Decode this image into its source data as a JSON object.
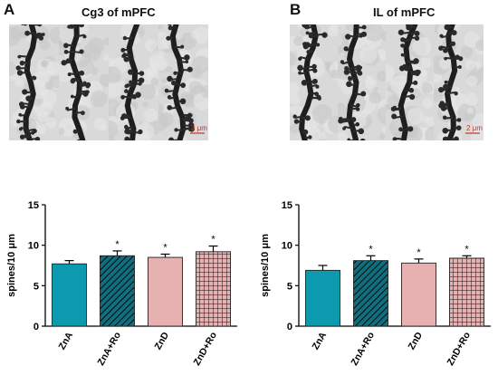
{
  "panels": [
    {
      "letter": "A",
      "title": "Cg3 of mPFC",
      "scale_bar": "2 μm"
    },
    {
      "letter": "B",
      "title": "IL of mPFC",
      "scale_bar": "2 μm"
    }
  ],
  "colors": {
    "ZnA": "#0d9aae",
    "ZnA+Ro": "#0f6f7e",
    "ZnD": "#e8b1b1",
    "ZnD+Ro": "#e8b1b1",
    "axis": "#000000",
    "scale_bar": "#c0392b"
  },
  "chart_data": [
    {
      "type": "bar",
      "panel": "A",
      "categories": [
        "ZnA",
        "ZnA+Ro",
        "ZnD",
        "ZnD+Ro"
      ],
      "values": [
        7.7,
        8.7,
        8.5,
        9.2
      ],
      "errors": [
        0.4,
        0.6,
        0.4,
        0.7
      ],
      "significance": [
        "",
        "*",
        "*",
        "*"
      ],
      "fills": [
        "solid",
        "hatch",
        "solid",
        "grid"
      ],
      "ylabel": "spines/10 μm",
      "yticks": [
        0,
        5,
        10,
        15
      ],
      "ylim": [
        0,
        15
      ]
    },
    {
      "type": "bar",
      "panel": "B",
      "categories": [
        "ZnA",
        "ZnA+Ro",
        "ZnD",
        "ZnD+Ro"
      ],
      "values": [
        6.9,
        8.1,
        7.8,
        8.4
      ],
      "errors": [
        0.6,
        0.6,
        0.5,
        0.3
      ],
      "significance": [
        "",
        "*",
        "*",
        "*"
      ],
      "fills": [
        "solid",
        "hatch",
        "solid",
        "grid"
      ],
      "ylabel": "spines/10 μm",
      "yticks": [
        0,
        5,
        10,
        15
      ],
      "ylim": [
        0,
        15
      ]
    }
  ]
}
